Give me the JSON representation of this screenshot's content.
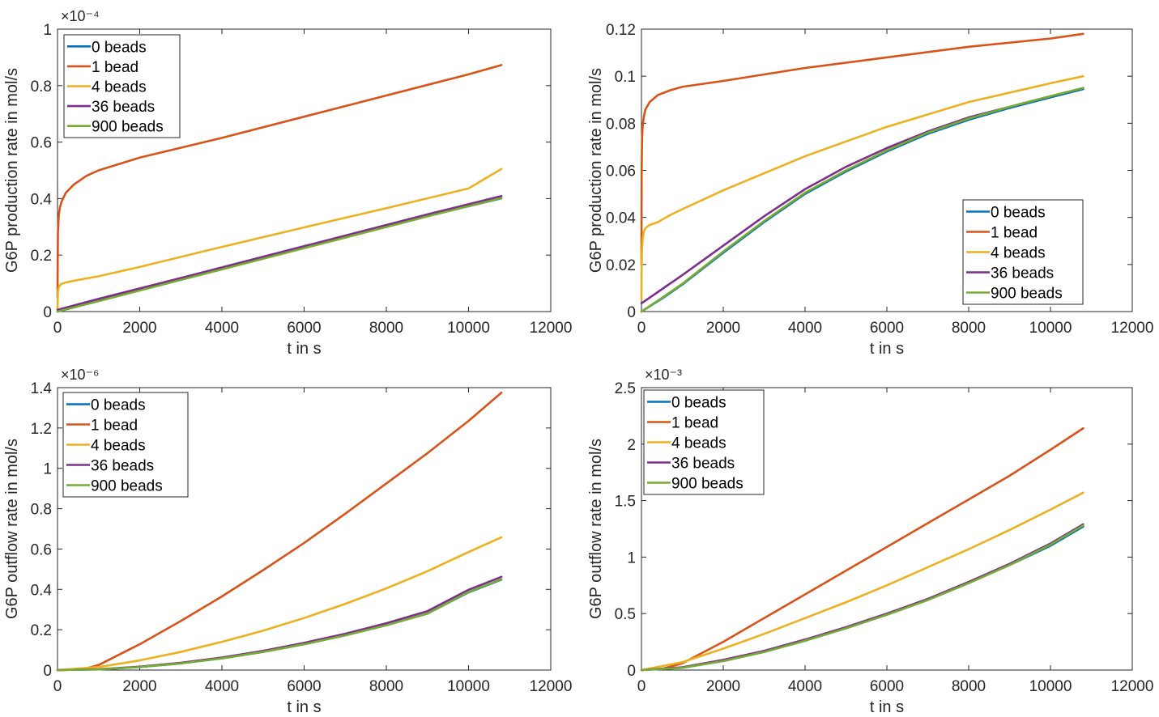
{
  "colors": {
    "series": [
      "#0072BD",
      "#D95319",
      "#EDB120",
      "#7E2F8E",
      "#77AC30"
    ],
    "axis": "#262626",
    "background": "#ffffff"
  },
  "chart_data": [
    {
      "type": "line",
      "title": "",
      "xlabel": "t in s",
      "ylabel": "G6P production rate in mol/s",
      "xlim": [
        0,
        12000
      ],
      "ylim": [
        0,
        1
      ],
      "xticks": [
        0,
        2000,
        4000,
        6000,
        8000,
        10000,
        12000
      ],
      "yticks": [
        0,
        0.2,
        0.4,
        0.6,
        0.8,
        1
      ],
      "ytick_labels": [
        "0",
        "0.2",
        "0.4",
        "0.6",
        "0.8",
        "1"
      ],
      "y_exponent": "×10⁻⁴",
      "grid": false,
      "legend_position": "top-left",
      "series": [
        {
          "name": "0 beads",
          "x": [
            0,
            1000,
            3000,
            5000,
            7000,
            9000,
            10800
          ],
          "values": [
            0,
            0.038,
            0.113,
            0.188,
            0.263,
            0.338,
            0.401
          ]
        },
        {
          "name": "1 bead",
          "x": [
            0,
            10,
            30,
            60,
            100,
            200,
            400,
            700,
            1000,
            2000,
            4000,
            6000,
            8000,
            10000,
            10800
          ],
          "values": [
            0.05,
            0.28,
            0.34,
            0.37,
            0.39,
            0.42,
            0.45,
            0.48,
            0.5,
            0.545,
            0.615,
            0.69,
            0.765,
            0.84,
            0.873
          ]
        },
        {
          "name": "4 beads",
          "x": [
            0,
            10,
            30,
            60,
            100,
            200,
            500,
            1000,
            2000,
            4000,
            6000,
            8000,
            10000,
            10800
          ],
          "values": [
            0.01,
            0.07,
            0.085,
            0.093,
            0.098,
            0.103,
            0.112,
            0.125,
            0.158,
            0.229,
            0.298,
            0.366,
            0.436,
            0.505
          ]
        },
        {
          "name": "36 beads",
          "x": [
            0,
            1000,
            3000,
            5000,
            7000,
            9000,
            10800
          ],
          "values": [
            0.006,
            0.045,
            0.119,
            0.194,
            0.269,
            0.344,
            0.409
          ]
        },
        {
          "name": "900 beads",
          "x": [
            0,
            1000,
            3000,
            5000,
            7000,
            9000,
            10800
          ],
          "values": [
            0,
            0.037,
            0.112,
            0.187,
            0.262,
            0.337,
            0.402
          ]
        }
      ]
    },
    {
      "type": "line",
      "title": "",
      "xlabel": "t in s",
      "ylabel": "G6P production rate in mol/s",
      "xlim": [
        0,
        12000
      ],
      "ylim": [
        0,
        0.12
      ],
      "xticks": [
        0,
        2000,
        4000,
        6000,
        8000,
        10000,
        12000
      ],
      "yticks": [
        0,
        0.02,
        0.04,
        0.06,
        0.08,
        0.1,
        0.12
      ],
      "ytick_labels": [
        "0",
        "0.02",
        "0.04",
        "0.06",
        "0.08",
        "0.1",
        "0.12"
      ],
      "y_exponent": "",
      "grid": false,
      "legend_position": "bottom-right",
      "series": [
        {
          "name": "0 beads",
          "x": [
            0,
            500,
            1000,
            2000,
            3000,
            4000,
            5000,
            6000,
            7000,
            8000,
            9000,
            10000,
            10800
          ],
          "values": [
            0,
            0.0055,
            0.0115,
            0.025,
            0.038,
            0.05,
            0.0595,
            0.068,
            0.0755,
            0.0815,
            0.0865,
            0.091,
            0.0945
          ]
        },
        {
          "name": "1 bead",
          "x": [
            0,
            5,
            15,
            30,
            60,
            100,
            200,
            400,
            700,
            1000,
            2000,
            4000,
            6000,
            8000,
            10000,
            10800
          ],
          "values": [
            0.02,
            0.06,
            0.074,
            0.079,
            0.083,
            0.086,
            0.089,
            0.092,
            0.094,
            0.0955,
            0.098,
            0.1035,
            0.108,
            0.1125,
            0.116,
            0.118
          ]
        },
        {
          "name": "4 beads",
          "x": [
            0,
            5,
            15,
            30,
            60,
            100,
            200,
            400,
            700,
            1000,
            2000,
            4000,
            6000,
            8000,
            10000,
            10800
          ],
          "values": [
            0.005,
            0.02,
            0.027,
            0.031,
            0.034,
            0.0355,
            0.0368,
            0.038,
            0.041,
            0.0435,
            0.0515,
            0.066,
            0.0785,
            0.089,
            0.097,
            0.1
          ]
        },
        {
          "name": "36 beads",
          "x": [
            0,
            500,
            1000,
            2000,
            3000,
            4000,
            5000,
            6000,
            7000,
            8000,
            9000,
            10000,
            10800
          ],
          "values": [
            0.0035,
            0.0095,
            0.0155,
            0.028,
            0.0405,
            0.052,
            0.0615,
            0.0695,
            0.0765,
            0.0825,
            0.087,
            0.0915,
            0.095
          ]
        },
        {
          "name": "900 beads",
          "x": [
            0,
            500,
            1000,
            2000,
            3000,
            4000,
            5000,
            6000,
            7000,
            8000,
            9000,
            10000,
            10800
          ],
          "values": [
            0,
            0.0058,
            0.0118,
            0.0255,
            0.0385,
            0.0505,
            0.06,
            0.0685,
            0.076,
            0.082,
            0.087,
            0.0915,
            0.095
          ]
        }
      ]
    },
    {
      "type": "line",
      "title": "",
      "xlabel": "t in s",
      "ylabel": "G6P outflow rate in mol/s",
      "xlim": [
        0,
        12000
      ],
      "ylim": [
        0,
        1.4
      ],
      "xticks": [
        0,
        2000,
        4000,
        6000,
        8000,
        10000,
        12000
      ],
      "yticks": [
        0,
        0.2,
        0.4,
        0.6,
        0.8,
        1,
        1.2,
        1.4
      ],
      "ytick_labels": [
        "0",
        "0.2",
        "0.4",
        "0.6",
        "0.8",
        "1",
        "1.2",
        "1.4"
      ],
      "y_exponent": "×10⁻⁶",
      "grid": false,
      "legend_position": "top-left",
      "series": [
        {
          "name": "0 beads",
          "x": [
            0,
            1000,
            2000,
            3000,
            4000,
            5000,
            6000,
            7000,
            8000,
            9000,
            10000,
            10800
          ],
          "values": [
            0,
            0.003,
            0.015,
            0.033,
            0.058,
            0.09,
            0.128,
            0.172,
            0.222,
            0.28,
            0.385,
            0.448
          ]
        },
        {
          "name": "1 bead",
          "x": [
            0,
            500,
            700,
            1000,
            2000,
            3000,
            4000,
            5000,
            6000,
            7000,
            8000,
            9000,
            10000,
            10800
          ],
          "values": [
            0,
            0.002,
            0.008,
            0.025,
            0.128,
            0.243,
            0.365,
            0.495,
            0.63,
            0.775,
            0.925,
            1.075,
            1.235,
            1.375
          ]
        },
        {
          "name": "4 beads",
          "x": [
            0,
            1000,
            2000,
            3000,
            4000,
            5000,
            6000,
            7000,
            8000,
            9000,
            10000,
            10800
          ],
          "values": [
            0,
            0.015,
            0.048,
            0.09,
            0.14,
            0.195,
            0.258,
            0.328,
            0.405,
            0.49,
            0.585,
            0.658
          ]
        },
        {
          "name": "36 beads",
          "x": [
            0,
            1000,
            2000,
            3000,
            4000,
            5000,
            6000,
            7000,
            8000,
            9000,
            10000,
            10800
          ],
          "values": [
            0,
            0.004,
            0.017,
            0.036,
            0.062,
            0.095,
            0.135,
            0.18,
            0.232,
            0.292,
            0.398,
            0.462
          ]
        },
        {
          "name": "900 beads",
          "x": [
            0,
            1000,
            2000,
            3000,
            4000,
            5000,
            6000,
            7000,
            8000,
            9000,
            10000,
            10800
          ],
          "values": [
            0,
            0.003,
            0.015,
            0.033,
            0.058,
            0.09,
            0.128,
            0.172,
            0.222,
            0.28,
            0.387,
            0.45
          ]
        }
      ]
    },
    {
      "type": "line",
      "title": "",
      "xlabel": "t in s",
      "ylabel": "G6P outflow rate in mol/s",
      "xlim": [
        0,
        12000
      ],
      "ylim": [
        0,
        2.5
      ],
      "xticks": [
        0,
        2000,
        4000,
        6000,
        8000,
        10000,
        12000
      ],
      "yticks": [
        0,
        0.5,
        1,
        1.5,
        2,
        2.5
      ],
      "ytick_labels": [
        "0",
        "0.5",
        "1",
        "1.5",
        "2",
        "2.5"
      ],
      "y_exponent": "×10⁻³",
      "grid": false,
      "legend_position": "top-left",
      "series": [
        {
          "name": "0 beads",
          "x": [
            0,
            1000,
            2000,
            3000,
            4000,
            5000,
            6000,
            7000,
            8000,
            9000,
            10000,
            10800
          ],
          "values": [
            0,
            0.02,
            0.08,
            0.16,
            0.26,
            0.37,
            0.49,
            0.62,
            0.77,
            0.93,
            1.1,
            1.27
          ]
        },
        {
          "name": "1 bead",
          "x": [
            0,
            500,
            1000,
            2000,
            3000,
            4000,
            5000,
            6000,
            7000,
            8000,
            9000,
            10000,
            10800
          ],
          "values": [
            0,
            0.01,
            0.06,
            0.25,
            0.46,
            0.67,
            0.88,
            1.09,
            1.3,
            1.51,
            1.72,
            1.95,
            2.14
          ]
        },
        {
          "name": "4 beads",
          "x": [
            0,
            1000,
            2000,
            3000,
            4000,
            5000,
            6000,
            7000,
            8000,
            9000,
            10000,
            10800
          ],
          "values": [
            0,
            0.07,
            0.19,
            0.32,
            0.46,
            0.6,
            0.75,
            0.91,
            1.07,
            1.24,
            1.42,
            1.57
          ]
        },
        {
          "name": "36 beads",
          "x": [
            0,
            1000,
            2000,
            3000,
            4000,
            5000,
            6000,
            7000,
            8000,
            9000,
            10000,
            10800
          ],
          "values": [
            0,
            0.025,
            0.09,
            0.17,
            0.27,
            0.38,
            0.5,
            0.63,
            0.78,
            0.94,
            1.12,
            1.29
          ]
        },
        {
          "name": "900 beads",
          "x": [
            0,
            1000,
            2000,
            3000,
            4000,
            5000,
            6000,
            7000,
            8000,
            9000,
            10000,
            10800
          ],
          "values": [
            0,
            0.02,
            0.08,
            0.16,
            0.26,
            0.37,
            0.49,
            0.62,
            0.77,
            0.93,
            1.11,
            1.28
          ]
        }
      ]
    }
  ]
}
